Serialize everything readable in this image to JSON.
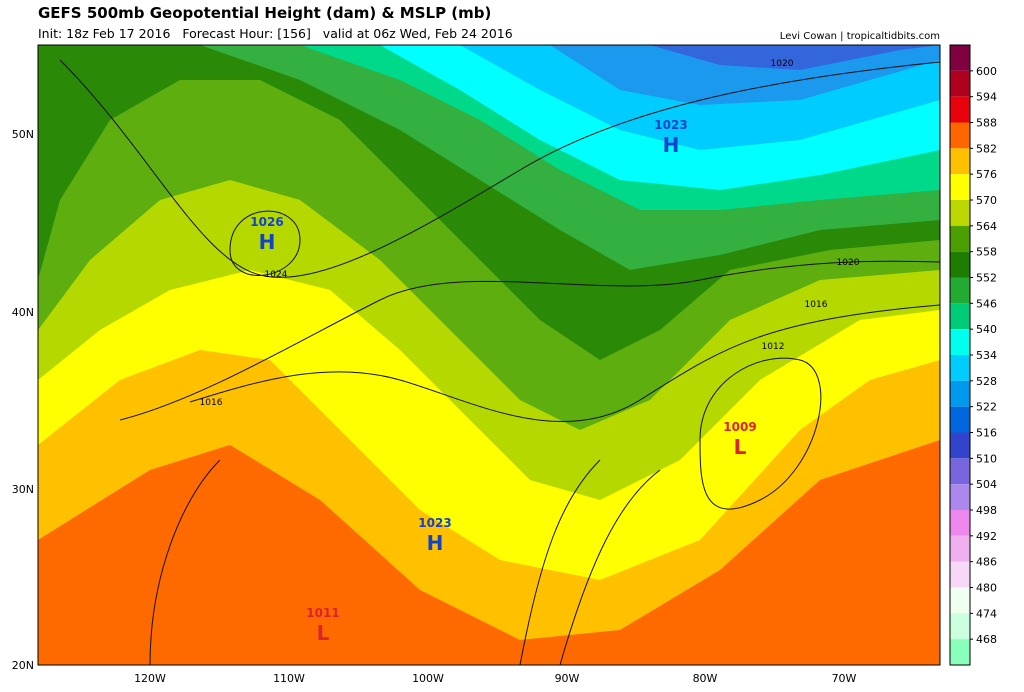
{
  "header": {
    "title": "GEFS 500mb Geopotential Height (dam) & MSLP (mb)",
    "subtitle": "Init: 18z Feb 17 2016   Forecast Hour: [156]   valid at 06z Wed, Feb 24 2016",
    "credit": "Levi Cowan | tropicaltidbits.com"
  },
  "map": {
    "lat_labels": [
      "50N",
      "40N",
      "30N",
      "20N"
    ],
    "lon_labels": [
      "120W",
      "110W",
      "100W",
      "90W",
      "80W",
      "70W"
    ],
    "centers": [
      {
        "letter": "H",
        "value": 1023
      },
      {
        "letter": "H",
        "value": 1026
      },
      {
        "letter": "H",
        "value": 1023
      },
      {
        "letter": "L",
        "value": 1009
      },
      {
        "letter": "L",
        "value": 1011
      }
    ],
    "isobar_labels": [
      1020,
      1020,
      1024,
      1016,
      1012,
      1016
    ]
  },
  "colorbar": {
    "labels": [
      600,
      594,
      588,
      582,
      576,
      570,
      564,
      558,
      552,
      546,
      540,
      534,
      528,
      522,
      516,
      510,
      504,
      498,
      492,
      486,
      480,
      474,
      468
    ],
    "colors": [
      "#800040",
      "#b00020",
      "#e8000a",
      "#ff6600",
      "#ffc000",
      "#ffff00",
      "#bcd800",
      "#4c9f00",
      "#1e7d00",
      "#22aa33",
      "#00cc77",
      "#00ffee",
      "#00ccff",
      "#0099ee",
      "#0066dd",
      "#3344cc",
      "#7766dd",
      "#aa88ee",
      "#ee88ee",
      "#f0b0f0",
      "#f8d8f8",
      "#f0fff0",
      "#ccffdd",
      "#88ffbb"
    ]
  }
}
